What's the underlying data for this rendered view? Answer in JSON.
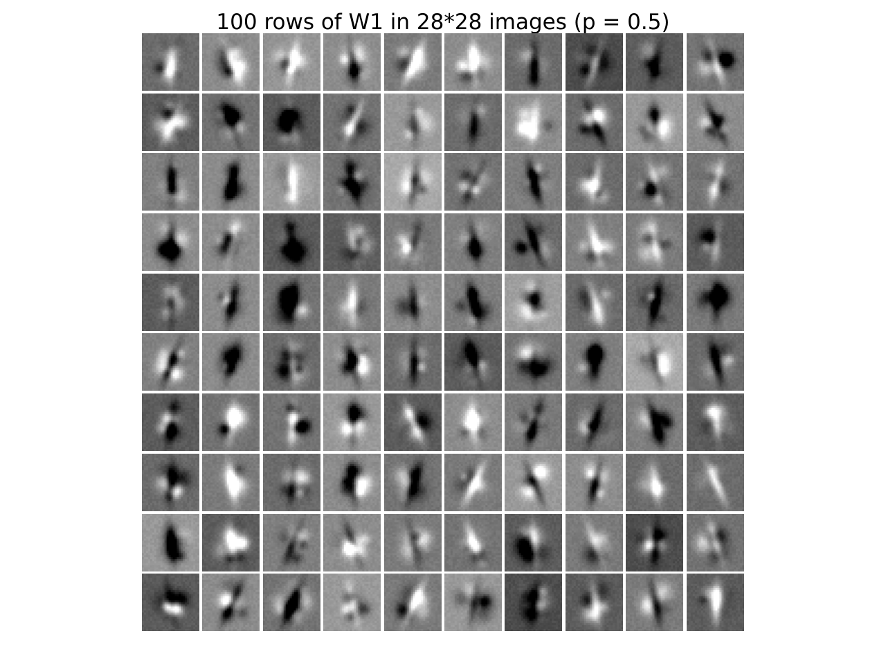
{
  "title": "100 rows of W1 in 28*28 images (p = 0.5)",
  "grid": {
    "rows": 10,
    "cols": 10,
    "image_size": "28*28",
    "colormap": "gray",
    "tile_background_levels": [
      [
        0.42,
        0.55,
        0.58,
        0.55,
        0.48,
        0.55,
        0.42,
        0.3,
        0.36,
        0.45
      ],
      [
        0.36,
        0.45,
        0.36,
        0.45,
        0.6,
        0.42,
        0.55,
        0.42,
        0.6,
        0.55
      ],
      [
        0.5,
        0.55,
        0.6,
        0.45,
        0.66,
        0.45,
        0.5,
        0.42,
        0.45,
        0.45
      ],
      [
        0.55,
        0.55,
        0.36,
        0.36,
        0.48,
        0.5,
        0.42,
        0.5,
        0.48,
        0.36
      ],
      [
        0.36,
        0.55,
        0.45,
        0.48,
        0.55,
        0.5,
        0.62,
        0.42,
        0.42,
        0.48
      ],
      [
        0.5,
        0.55,
        0.42,
        0.55,
        0.42,
        0.36,
        0.45,
        0.5,
        0.66,
        0.42
      ],
      [
        0.36,
        0.45,
        0.45,
        0.6,
        0.36,
        0.55,
        0.48,
        0.42,
        0.5,
        0.36
      ],
      [
        0.42,
        0.48,
        0.42,
        0.55,
        0.45,
        0.48,
        0.6,
        0.55,
        0.42,
        0.42
      ],
      [
        0.6,
        0.36,
        0.5,
        0.55,
        0.48,
        0.45,
        0.36,
        0.48,
        0.3,
        0.45
      ],
      [
        0.36,
        0.55,
        0.45,
        0.6,
        0.48,
        0.6,
        0.3,
        0.36,
        0.48,
        0.36
      ]
    ]
  }
}
